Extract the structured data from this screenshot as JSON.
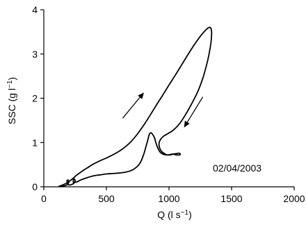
{
  "chart_data": {
    "type": "line",
    "title": "",
    "xlabel": "Q (l s",
    "xlabel_superscript": "−1",
    "xlabel_suffix": ")",
    "ylabel": "SSC (g l",
    "ylabel_superscript": "−1",
    "ylabel_suffix": ")",
    "xlim": [
      0,
      2000
    ],
    "ylim": [
      0,
      4
    ],
    "xticks": [
      0,
      500,
      1000,
      1500,
      2000
    ],
    "yticks": [
      0,
      1,
      2,
      3,
      4
    ],
    "grid": false,
    "legend": "none",
    "annotation": "02/04/2003",
    "series": [
      {
        "x": [
          120,
          140,
          165,
          180,
          200,
          230,
          260,
          280,
          300,
          320,
          360,
          400,
          450,
          500,
          550,
          600,
          650,
          700,
          750,
          800,
          850,
          900,
          950,
          1000,
          1050,
          1100,
          1150,
          1200,
          1250,
          1280,
          1300,
          1320,
          1335,
          1340,
          1340,
          1335,
          1320,
          1300,
          1270,
          1230,
          1180,
          1130,
          1080,
          1030,
          990,
          960,
          940,
          925,
          920,
          925,
          940,
          960,
          975,
          990,
          1010,
          1030,
          1060,
          1085,
          1090,
          1080,
          1040,
          1000,
          960,
          930,
          910,
          895,
          885,
          870,
          855,
          842,
          830,
          815,
          800,
          780,
          760,
          730,
          700,
          650,
          600,
          550,
          500,
          450,
          400,
          350,
          300,
          270,
          250,
          240,
          235,
          240,
          250,
          240,
          220,
          200,
          190,
          185,
          195,
          200,
          190,
          175,
          160,
          145,
          130,
          120
        ],
        "y": [
          0.01,
          0.03,
          0.06,
          0.08,
          0.12,
          0.18,
          0.26,
          0.3,
          0.34,
          0.38,
          0.45,
          0.52,
          0.59,
          0.65,
          0.72,
          0.8,
          0.9,
          1.03,
          1.2,
          1.4,
          1.62,
          1.85,
          2.07,
          2.3,
          2.52,
          2.75,
          2.98,
          3.2,
          3.4,
          3.5,
          3.56,
          3.6,
          3.58,
          3.5,
          3.42,
          3.25,
          3.0,
          2.75,
          2.45,
          2.15,
          1.87,
          1.62,
          1.41,
          1.27,
          1.2,
          1.15,
          1.1,
          1.03,
          0.96,
          0.88,
          0.8,
          0.76,
          0.73,
          0.72,
          0.73,
          0.74,
          0.72,
          0.72,
          0.74,
          0.76,
          0.74,
          0.72,
          0.73,
          0.78,
          0.88,
          1.0,
          1.1,
          1.18,
          1.22,
          1.18,
          1.05,
          0.9,
          0.75,
          0.6,
          0.5,
          0.42,
          0.37,
          0.33,
          0.31,
          0.3,
          0.29,
          0.27,
          0.25,
          0.21,
          0.16,
          0.12,
          0.1,
          0.09,
          0.12,
          0.18,
          0.14,
          0.08,
          0.05,
          0.04,
          0.08,
          0.14,
          0.15,
          0.1,
          0.06,
          0.03,
          0.02,
          0.01,
          0.01,
          0.01
        ]
      }
    ],
    "arrows": [
      {
        "from": [
          630,
          1.55
        ],
        "to": [
          800,
          2.13
        ]
      },
      {
        "from": [
          1270,
          2.03
        ],
        "to": [
          1120,
          1.34
        ]
      }
    ]
  }
}
